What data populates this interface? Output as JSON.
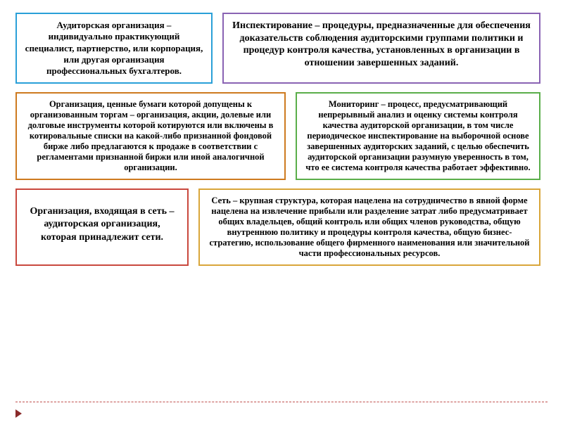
{
  "boxes": {
    "b1": {
      "text": "Аудиторская организация – индивидуально практикующий специалист, партнерство, или корпорация, или другая организация профессиональных бухгалтеров.",
      "border_color": "#2aa0d8"
    },
    "b2": {
      "text": "Инспектирование – процедуры, предназначенные для обеспечения доказательств соблюдения аудиторскими группами политики и процедур контроля качества, установленных в организации в отношении завершенных заданий.",
      "border_color": "#8a63b3"
    },
    "b3": {
      "text": "Организация, ценные бумаги которой допущены к организованным торгам – организация, акции, долевые или долговые инструменты которой котируются или включены в котировальные списки на какой-либо признанной фондовой бирже либо предлагаются к продаже в соответствии с регламентами признанной биржи или иной аналогичной организации.",
      "border_color": "#ce7a1f"
    },
    "b4": {
      "text": "Мониторинг – процесс, предусматривающий непрерывный анализ и оценку системы контроля качества аудиторской организации, в том числе периодическое инспектирование на выборочной основе завершенных аудиторских заданий, с целью обеспечить аудиторской организации разумную уверенность в том, что ее система контроля качества работает эффективно.",
      "border_color": "#5aae4a"
    },
    "b5": {
      "text": "Организация, входящая в сеть – аудиторская организация, которая принадлежит сети.",
      "border_color": "#c9483e"
    },
    "b6": {
      "text": "Сеть – крупная структура, которая нацелена на сотрудничество в явной форме нацелена на извлечение прибыли или разделение затрат либо предусматривает общих владельцев, общий контроль или общих членов руководства, общую внутреннюю политику и процедуры контроля качества, общую бизнес-стратегию, использование общего фирменного наименования или значительной части профессиональных ресурсов.",
      "border_color": "#d9a63a"
    }
  },
  "layout": {
    "background": "#ffffff",
    "divider_color": "#c0504d",
    "arrow_color": "#8a2a2a",
    "font_family": "Times New Roman"
  }
}
